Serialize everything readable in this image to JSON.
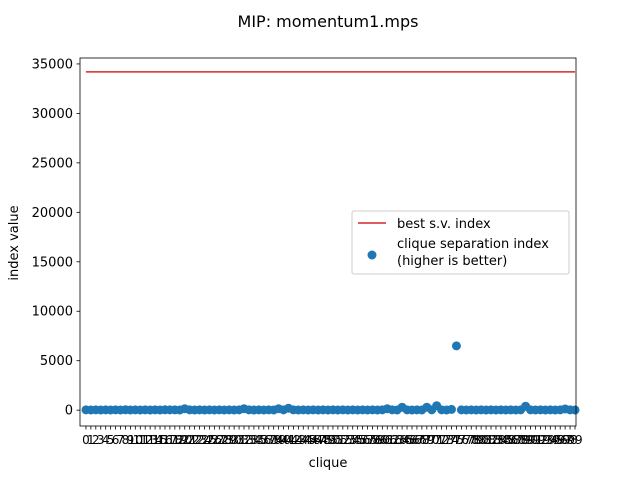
{
  "chart_data": {
    "type": "scatter",
    "title": "MIP: momentum1.mps",
    "xlabel": "clique",
    "ylabel": "index value",
    "xlim": [
      -1.2,
      99.2
    ],
    "ylim": [
      -1600,
      35600
    ],
    "y_ticks": [
      0,
      5000,
      10000,
      15000,
      20000,
      25000,
      30000,
      35000
    ],
    "x_tick_labels": [
      "0",
      "1",
      "2",
      "3",
      "4",
      "5",
      "6",
      "7",
      "8",
      "9",
      "10",
      "11",
      "12",
      "13",
      "14",
      "15",
      "16",
      "17",
      "18",
      "19",
      "20",
      "21",
      "22",
      "23",
      "24",
      "25",
      "26",
      "27",
      "28",
      "29",
      "30",
      "31",
      "32",
      "33",
      "34",
      "35",
      "36",
      "37",
      "38",
      "39",
      "40",
      "41",
      "42",
      "43",
      "44",
      "45",
      "46",
      "47",
      "48",
      "49",
      "50",
      "51",
      "52",
      "53",
      "54",
      "55",
      "56",
      "57",
      "58",
      "59",
      "60",
      "61",
      "62",
      "63",
      "64",
      "65",
      "66",
      "67",
      "68",
      "69",
      "70",
      "71",
      "72",
      "73",
      "74",
      "75",
      "76",
      "77",
      "78",
      "79",
      "80",
      "81",
      "82",
      "83",
      "84",
      "85",
      "86",
      "87",
      "88",
      "89",
      "90",
      "91",
      "92",
      "93",
      "94",
      "95",
      "96",
      "97",
      "98",
      "99"
    ],
    "grid": false,
    "legend_position": "center-right",
    "series": [
      {
        "name": "best s.v. index",
        "kind": "line",
        "color": "#d62728",
        "x": [
          0,
          99
        ],
        "y": [
          34200,
          34200
        ]
      },
      {
        "name": "clique separation index\n(higher is better)",
        "kind": "scatter",
        "color": "#1f77b4",
        "x": [
          0,
          1,
          2,
          3,
          4,
          5,
          6,
          7,
          8,
          9,
          10,
          11,
          12,
          13,
          14,
          15,
          16,
          17,
          18,
          19,
          20,
          21,
          22,
          23,
          24,
          25,
          26,
          27,
          28,
          29,
          30,
          31,
          32,
          33,
          34,
          35,
          36,
          37,
          38,
          39,
          40,
          41,
          42,
          43,
          44,
          45,
          46,
          47,
          48,
          49,
          50,
          51,
          52,
          53,
          54,
          55,
          56,
          57,
          58,
          59,
          60,
          61,
          62,
          63,
          64,
          65,
          66,
          67,
          68,
          69,
          70,
          71,
          72,
          73,
          74,
          75,
          76,
          77,
          78,
          79,
          80,
          81,
          82,
          83,
          84,
          85,
          86,
          87,
          88,
          89,
          90,
          91,
          92,
          93,
          94,
          95,
          96,
          97,
          98,
          99
        ],
        "y": [
          30,
          20,
          30,
          20,
          30,
          20,
          30,
          20,
          40,
          20,
          30,
          20,
          30,
          20,
          30,
          20,
          40,
          30,
          30,
          20,
          150,
          30,
          20,
          30,
          20,
          30,
          20,
          30,
          20,
          30,
          20,
          30,
          150,
          30,
          20,
          30,
          20,
          30,
          20,
          150,
          30,
          200,
          30,
          20,
          30,
          20,
          30,
          20,
          30,
          20,
          30,
          20,
          30,
          20,
          30,
          20,
          30,
          20,
          30,
          20,
          30,
          150,
          30,
          20,
          300,
          30,
          20,
          30,
          20,
          300,
          30,
          450,
          30,
          20,
          80,
          6500,
          30,
          20,
          30,
          20,
          30,
          20,
          30,
          20,
          30,
          20,
          30,
          20,
          30,
          400,
          30,
          20,
          30,
          20,
          30,
          20,
          30,
          120,
          30,
          20
        ]
      }
    ]
  }
}
